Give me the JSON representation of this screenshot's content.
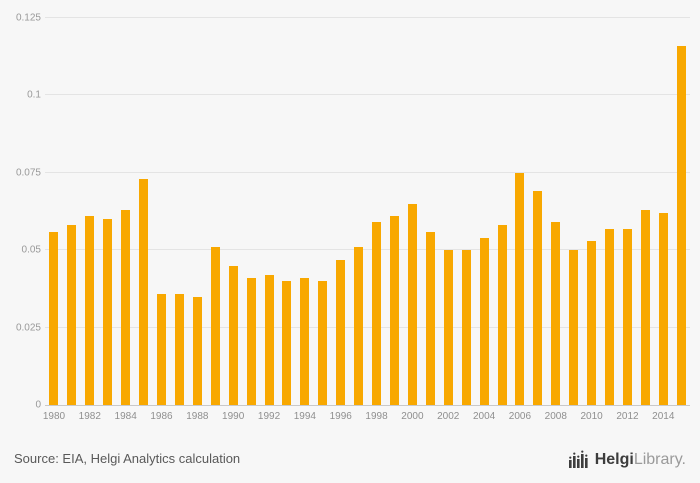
{
  "chart_data": {
    "type": "bar",
    "title": "",
    "xlabel": "",
    "ylabel": "",
    "categories": [
      1980,
      1981,
      1982,
      1983,
      1984,
      1985,
      1986,
      1987,
      1988,
      1989,
      1990,
      1991,
      1992,
      1993,
      1994,
      1995,
      1996,
      1997,
      1998,
      1999,
      2000,
      2001,
      2002,
      2003,
      2004,
      2005,
      2006,
      2007,
      2008,
      2009,
      2010,
      2011,
      2012,
      2013,
      2014,
      2015
    ],
    "values": [
      0.056,
      0.058,
      0.061,
      0.06,
      0.063,
      0.073,
      0.036,
      0.036,
      0.035,
      0.051,
      0.045,
      0.041,
      0.042,
      0.04,
      0.041,
      0.04,
      0.047,
      0.051,
      0.059,
      0.061,
      0.065,
      0.056,
      0.05,
      0.05,
      0.054,
      0.058,
      0.075,
      0.069,
      0.059,
      0.05,
      0.053,
      0.057,
      0.057,
      0.063,
      0.062,
      0.116
    ],
    "ylim": [
      0,
      0.125
    ],
    "yticks": [
      0,
      0.025,
      0.05,
      0.075,
      0.1,
      0.125
    ],
    "ytick_labels": [
      "0",
      "0.025",
      "0.05",
      "0.075",
      "0.1",
      "0.125"
    ],
    "x_label_every": 2,
    "grid": true,
    "legend": "none",
    "bar_color": "#f8a800"
  },
  "footer": {
    "source": "Source: EIA, Helgi Analytics calculation",
    "logo": {
      "part1": "Helgi",
      "part2": "Library",
      "suffix": "."
    }
  },
  "colors": {
    "background": "#f7f7f7",
    "gridline": "#e4e4e4",
    "axis": "#c9c9c9",
    "tick_text": "#999999",
    "source_text": "#595959",
    "bar": "#f8a800",
    "logo_dark": "#3d3d3d",
    "logo_gray": "#9a9a9a"
  }
}
